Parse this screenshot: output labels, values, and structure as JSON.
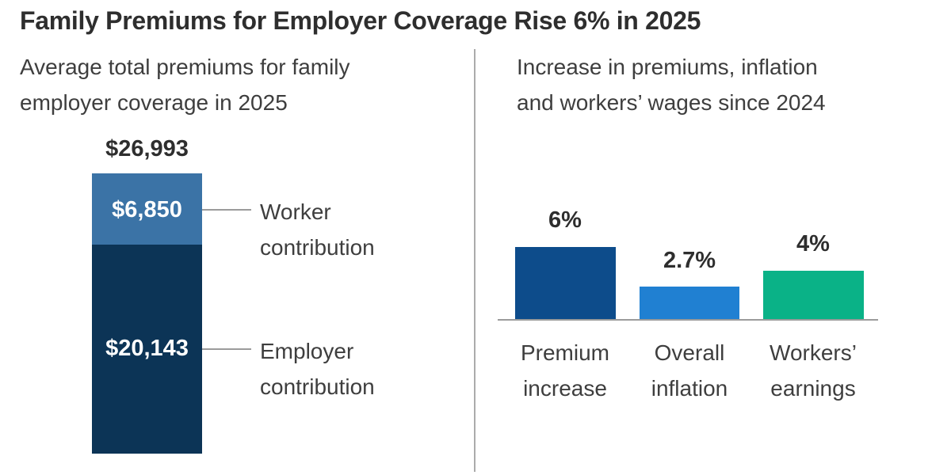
{
  "title": "Family Premiums for Employer Coverage Rise 6% in 2025",
  "left_panel": {
    "subtitle_line1": "Average total premiums for family",
    "subtitle_line2": "employer coverage in 2025",
    "total_label": "$26,993",
    "segments": [
      {
        "name": "Worker contribution",
        "value_label": "$6,850",
        "label_line1": "Worker",
        "label_line2": "contribution",
        "color": "#3B73A6"
      },
      {
        "name": "Employer contribution",
        "value_label": "$20,143",
        "label_line1": "Employer",
        "label_line2": "contribution",
        "color": "#0C3456"
      }
    ]
  },
  "right_panel": {
    "subtitle_line1": "Increase in premiums, inflation",
    "subtitle_line2": "and workers’ wages since 2024",
    "bars": [
      {
        "value_label": "6%",
        "label_line1": "Premium",
        "label_line2": "increase",
        "color": "#0D4C8B"
      },
      {
        "value_label": "2.7%",
        "label_line1": "Overall",
        "label_line2": "inflation",
        "color": "#2080D2"
      },
      {
        "value_label": "4%",
        "label_line1": "Workers’",
        "label_line2": "earnings",
        "color": "#0AB287"
      }
    ]
  },
  "colors": {
    "title_text": "#2E2E2E",
    "body_text": "#3E3E3E",
    "divider": "#ABABAB",
    "axis_line": "#9B9B9B",
    "worker_blue": "#3B73A6",
    "employer_navy": "#0C3456",
    "premium_dark_blue": "#0D4C8B",
    "inflation_blue": "#2080D2",
    "earnings_green": "#0AB287"
  },
  "chart_data": [
    {
      "type": "bar",
      "subtype": "single-stacked-column",
      "title": "Average total premiums for family employer coverage in 2025",
      "total": 26993,
      "total_label": "$26,993",
      "segments": [
        {
          "name": "Worker contribution",
          "value": 6850,
          "label": "$6,850",
          "color": "#3B73A6"
        },
        {
          "name": "Employer contribution",
          "value": 20143,
          "label": "$20,143",
          "color": "#0C3456"
        }
      ],
      "legend_position": "right-of-bar",
      "grid": false
    },
    {
      "type": "bar",
      "title": "Increase in premiums, inflation and workers’ wages since 2024",
      "categories": [
        "Premium increase",
        "Overall inflation",
        "Workers’ earnings"
      ],
      "values": [
        6,
        2.7,
        4
      ],
      "value_labels": [
        "6%",
        "2.7%",
        "4%"
      ],
      "colors": [
        "#0D4C8B",
        "#2080D2",
        "#0AB287"
      ],
      "unit": "%",
      "ylim": [
        0,
        6
      ],
      "grid": false,
      "axis": "baseline-only"
    }
  ]
}
